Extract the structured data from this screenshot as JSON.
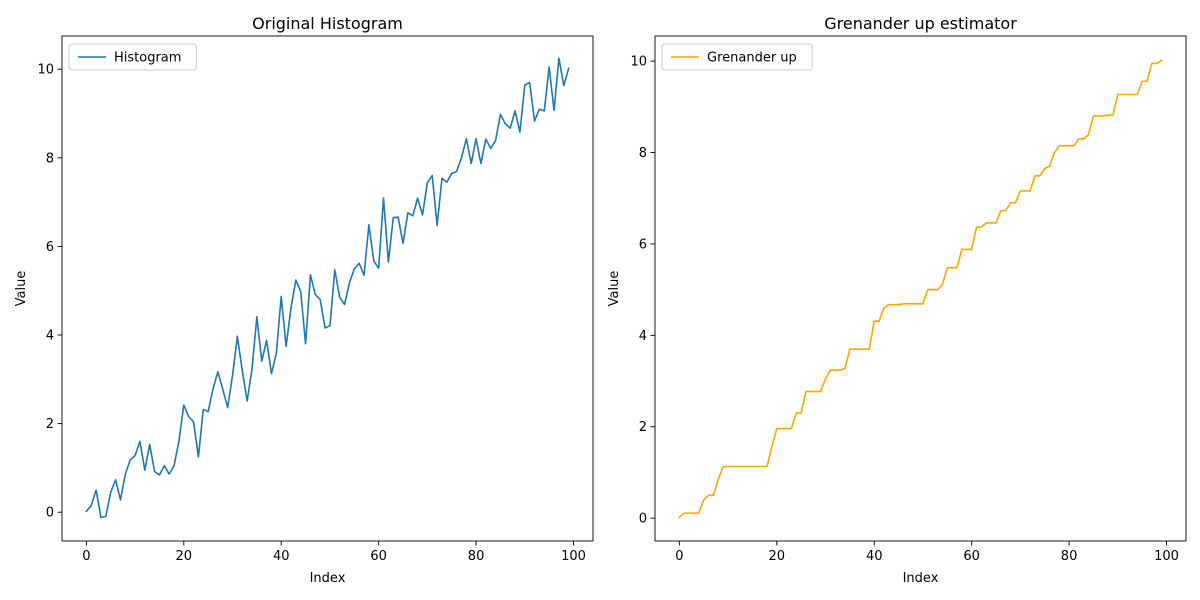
{
  "chart_data": [
    {
      "type": "line",
      "title": "Original Histogram",
      "xlabel": "Index",
      "ylabel": "Value",
      "xlim": [
        -5,
        104
      ],
      "ylim": [
        -0.65,
        10.75
      ],
      "xticks": [
        0,
        20,
        40,
        60,
        80,
        100
      ],
      "yticks": [
        0,
        2,
        4,
        6,
        8,
        10
      ],
      "legend": "upper-left",
      "grid": false,
      "series": [
        {
          "name": "Histogram",
          "color": "#1f77b4",
          "x": [
            0,
            1,
            2,
            3,
            4,
            5,
            6,
            7,
            8,
            9,
            10,
            11,
            12,
            13,
            14,
            15,
            16,
            17,
            18,
            19,
            20,
            21,
            22,
            23,
            24,
            25,
            26,
            27,
            28,
            29,
            30,
            31,
            32,
            33,
            34,
            35,
            36,
            37,
            38,
            39,
            40,
            41,
            42,
            43,
            44,
            45,
            46,
            47,
            48,
            49,
            50,
            51,
            52,
            53,
            54,
            55,
            56,
            57,
            58,
            59,
            60,
            61,
            62,
            63,
            64,
            65,
            66,
            67,
            68,
            69,
            70,
            71,
            72,
            73,
            74,
            75,
            76,
            77,
            78,
            79,
            80,
            81,
            82,
            83,
            84,
            85,
            86,
            87,
            88,
            89,
            90,
            91,
            92,
            93,
            94,
            95,
            96,
            97,
            98,
            99
          ],
          "values": [
            0.02,
            0.15,
            0.5,
            -0.12,
            -0.09,
            0.45,
            0.73,
            0.28,
            0.86,
            1.18,
            1.28,
            1.6,
            0.95,
            1.53,
            0.92,
            0.84,
            1.05,
            0.86,
            1.05,
            1.6,
            2.42,
            2.16,
            2.04,
            1.25,
            2.32,
            2.27,
            2.78,
            3.17,
            2.78,
            2.36,
            3.08,
            3.97,
            3.2,
            2.51,
            3.23,
            4.41,
            3.41,
            3.88,
            3.13,
            3.59,
            4.87,
            3.74,
            4.61,
            5.24,
            4.98,
            3.8,
            5.36,
            4.91,
            4.8,
            4.16,
            4.21,
            5.47,
            4.85,
            4.69,
            5.18,
            5.49,
            5.62,
            5.35,
            6.49,
            5.67,
            5.51,
            7.09,
            5.65,
            6.65,
            6.66,
            6.07,
            6.76,
            6.69,
            7.09,
            6.71,
            7.44,
            7.6,
            6.47,
            7.54,
            7.45,
            7.65,
            7.69,
            8.0,
            8.43,
            7.87,
            8.43,
            7.87,
            8.42,
            8.21,
            8.39,
            8.98,
            8.77,
            8.67,
            9.06,
            8.58,
            9.64,
            9.7,
            8.83,
            9.1,
            9.06,
            10.05,
            9.07,
            10.25,
            9.63,
            10.02
          ]
        }
      ]
    },
    {
      "type": "line",
      "title": "Grenander up estimator",
      "xlabel": "Index",
      "ylabel": "Value",
      "xlim": [
        -5,
        104
      ],
      "ylim": [
        -0.5,
        10.55
      ],
      "xticks": [
        0,
        20,
        40,
        60,
        80,
        100
      ],
      "yticks": [
        0,
        2,
        4,
        6,
        8,
        10
      ],
      "legend": "upper-left",
      "grid": false,
      "series": [
        {
          "name": "Grenander up",
          "color": "#ffa500",
          "x": [
            0,
            1,
            2,
            3,
            4,
            5,
            6,
            7,
            8,
            9,
            10,
            11,
            12,
            13,
            14,
            15,
            16,
            17,
            18,
            19,
            20,
            21,
            22,
            23,
            24,
            25,
            26,
            27,
            28,
            29,
            30,
            31,
            32,
            33,
            34,
            35,
            36,
            37,
            38,
            39,
            40,
            41,
            42,
            43,
            44,
            45,
            46,
            47,
            48,
            49,
            50,
            51,
            52,
            53,
            54,
            55,
            56,
            57,
            58,
            59,
            60,
            61,
            62,
            63,
            64,
            65,
            66,
            67,
            68,
            69,
            70,
            71,
            72,
            73,
            74,
            75,
            76,
            77,
            78,
            79,
            80,
            81,
            82,
            83,
            84,
            85,
            86,
            87,
            88,
            89,
            90,
            91,
            92,
            93,
            94,
            95,
            96,
            97,
            98,
            99
          ],
          "values": [
            0.02,
            0.11,
            0.11,
            0.11,
            0.11,
            0.4,
            0.5,
            0.5,
            0.85,
            1.13,
            1.13,
            1.13,
            1.13,
            1.13,
            1.13,
            1.13,
            1.13,
            1.13,
            1.13,
            1.57,
            1.96,
            1.96,
            1.96,
            1.96,
            2.3,
            2.3,
            2.77,
            2.77,
            2.77,
            2.77,
            3.05,
            3.24,
            3.24,
            3.24,
            3.27,
            3.7,
            3.7,
            3.7,
            3.7,
            3.7,
            4.31,
            4.31,
            4.6,
            4.67,
            4.67,
            4.67,
            4.69,
            4.69,
            4.69,
            4.69,
            4.69,
            5.0,
            5.0,
            5.0,
            5.11,
            5.48,
            5.48,
            5.48,
            5.88,
            5.88,
            5.88,
            6.37,
            6.37,
            6.46,
            6.46,
            6.46,
            6.73,
            6.73,
            6.9,
            6.9,
            7.16,
            7.16,
            7.16,
            7.49,
            7.49,
            7.65,
            7.7,
            8.0,
            8.15,
            8.15,
            8.15,
            8.15,
            8.3,
            8.3,
            8.39,
            8.8,
            8.8,
            8.8,
            8.82,
            8.82,
            9.27,
            9.27,
            9.27,
            9.27,
            9.27,
            9.56,
            9.56,
            9.95,
            9.95,
            10.02
          ]
        }
      ]
    }
  ]
}
